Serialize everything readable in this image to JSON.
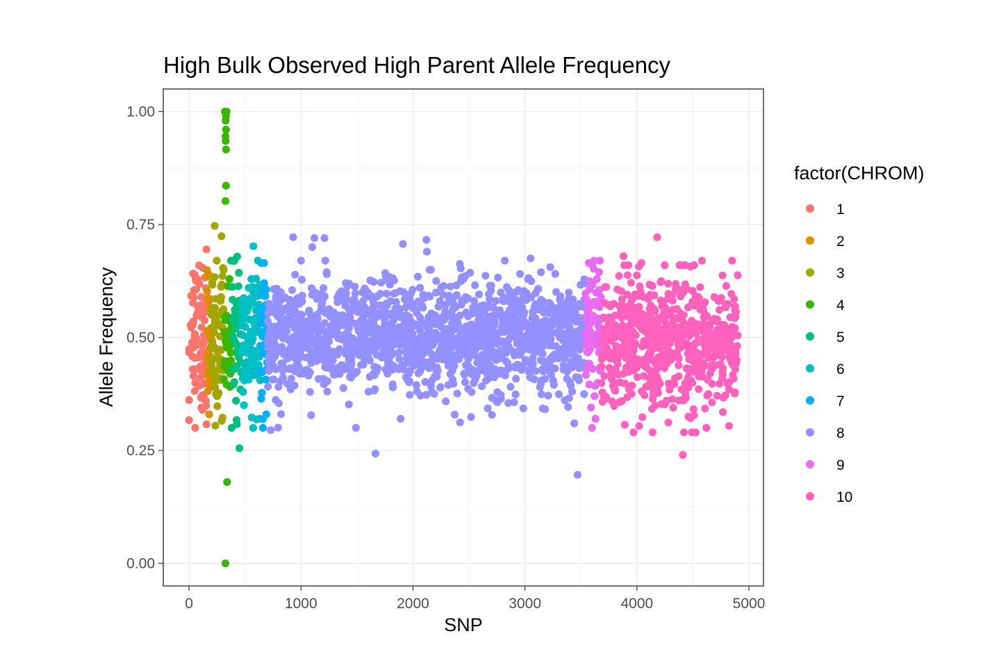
{
  "chart_data": {
    "type": "scatter",
    "title": "High Bulk Observed High Parent Allele Frequency",
    "xlabel": "SNP",
    "ylabel": "Allele Frequency",
    "xlim": [
      -230,
      5130
    ],
    "ylim": [
      -0.05,
      1.05
    ],
    "x_ticks": [
      0,
      1000,
      2000,
      3000,
      4000,
      5000
    ],
    "x_tick_labels": [
      "0",
      "1000",
      "2000",
      "3000",
      "4000",
      "5000"
    ],
    "y_ticks": [
      0,
      0.25,
      0.5,
      0.75,
      1
    ],
    "y_tick_labels": [
      "0.00",
      "0.25",
      "0.50",
      "0.75",
      "1.00"
    ],
    "grid": true,
    "legend": {
      "title": "factor(CHROM)",
      "position": "right",
      "entries": [
        "1",
        "2",
        "3",
        "4",
        "5",
        "6",
        "7",
        "8",
        "9",
        "10"
      ]
    },
    "series": [
      {
        "name": "1",
        "color": "#F8766D",
        "x_range": [
          0,
          160
        ],
        "center": 0.5,
        "spread": 0.085,
        "outliers": [
          [
            0,
            0.317
          ],
          [
            155,
            0.695
          ],
          [
            120,
            0.34
          ],
          [
            60,
            0.63
          ],
          [
            150,
            0.36
          ]
        ]
      },
      {
        "name": "2",
        "color": "#D89000",
        "x_range": [
          160,
          200
        ],
        "center": 0.49,
        "spread": 0.075,
        "outliers": [
          [
            180,
            0.33
          ],
          [
            175,
            0.64
          ]
        ]
      },
      {
        "name": "3",
        "color": "#A3A500",
        "x_range": [
          200,
          310
        ],
        "center": 0.5,
        "spread": 0.08,
        "outliers": [
          [
            230,
            0.747
          ],
          [
            290,
            0.724
          ],
          [
            235,
            0.305
          ],
          [
            310,
            0.65
          ],
          [
            250,
            0.37
          ]
        ]
      },
      {
        "name": "4",
        "color": "#39B600",
        "x_range": [
          310,
          380
        ],
        "center": 0.5,
        "spread": 0.06,
        "outliers": [
          [
            320,
            1.0
          ],
          [
            335,
            1.0
          ],
          [
            327,
            0.98
          ],
          [
            330,
            0.96
          ],
          [
            325,
            0.945
          ],
          [
            328,
            0.935
          ],
          [
            330,
            0.916
          ],
          [
            330,
            0.836
          ],
          [
            325,
            0.802
          ],
          [
            340,
            0.18
          ],
          [
            325,
            0.0
          ],
          [
            330,
            0.99
          ]
        ]
      },
      {
        "name": "5",
        "color": "#00BF7D",
        "x_range": [
          380,
          470
        ],
        "center": 0.5,
        "spread": 0.075,
        "outliers": [
          [
            430,
            0.679
          ],
          [
            450,
            0.255
          ],
          [
            420,
            0.36
          ]
        ]
      },
      {
        "name": "6",
        "color": "#00BFC4",
        "x_range": [
          470,
          640
        ],
        "center": 0.5,
        "spread": 0.075,
        "outliers": [
          [
            575,
            0.702
          ],
          [
            490,
            0.35
          ],
          [
            560,
            0.323
          ],
          [
            630,
            0.32
          ]
        ]
      },
      {
        "name": "7",
        "color": "#00B0F6",
        "x_range": [
          640,
          700
        ],
        "center": 0.5,
        "spread": 0.075,
        "outliers": [
          [
            670,
            0.665
          ],
          [
            660,
            0.3
          ],
          [
            690,
            0.33
          ]
        ]
      },
      {
        "name": "8",
        "color": "#9590FF",
        "x_range": [
          700,
          3540
        ],
        "center": 0.5,
        "spread": 0.06,
        "outliers": [
          [
            930,
            0.722
          ],
          [
            1120,
            0.72
          ],
          [
            1210,
            0.72
          ],
          [
            2120,
            0.716
          ],
          [
            1100,
            0.7
          ],
          [
            1910,
            0.707
          ],
          [
            2125,
            0.69
          ],
          [
            1665,
            0.243
          ],
          [
            3470,
            0.196
          ],
          [
            1490,
            0.3
          ],
          [
            2420,
            0.312
          ],
          [
            1090,
            0.328
          ],
          [
            1890,
            0.32
          ],
          [
            3440,
            0.31
          ],
          [
            730,
            0.295
          ],
          [
            3050,
            0.675
          ],
          [
            2820,
            0.67
          ]
        ]
      },
      {
        "name": "9",
        "color": "#E76BF3",
        "x_range": [
          3540,
          3680
        ],
        "center": 0.5,
        "spread": 0.07,
        "outliers": [
          [
            3570,
            0.665
          ],
          [
            3600,
            0.66
          ],
          [
            3630,
            0.32
          ],
          [
            3590,
            0.345
          ]
        ]
      },
      {
        "name": "10",
        "color": "#FF62BC",
        "x_range": [
          3680,
          4900
        ],
        "center": 0.49,
        "spread": 0.07,
        "outliers": [
          [
            4180,
            0.722
          ],
          [
            4410,
            0.24
          ],
          [
            4140,
            0.29
          ],
          [
            4420,
            0.29
          ],
          [
            3880,
            0.68
          ],
          [
            4580,
            0.67
          ],
          [
            4850,
            0.67
          ],
          [
            4620,
            0.3
          ],
          [
            4040,
            0.665
          ]
        ]
      }
    ]
  }
}
